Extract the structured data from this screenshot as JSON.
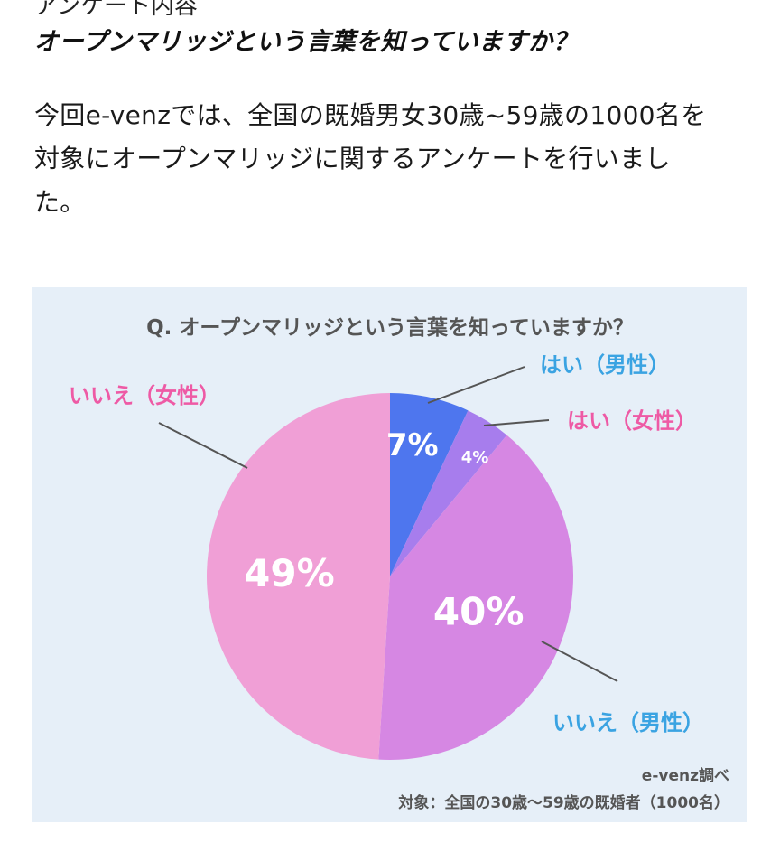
{
  "article": {
    "section_label": "アンケート内容",
    "heading": "オープンマリッジという言葉を知っていますか？",
    "body_lines": [
      "今回e-venzでは、全国の既婚男女30歳~59歳の1000名を",
      "対象にオープンマリッジに関するアンケートを行いまし",
      "た。"
    ]
  },
  "colors": {
    "card_background": "#e6eff8",
    "yes_male": "#4e76ee",
    "yes_female": "#a77ded",
    "no_male": "#d687e3",
    "no_female": "#f09fd6",
    "blue_label": "#3aa3e2",
    "pink_label": "#ee5aa5"
  },
  "chart_data": {
    "type": "pie",
    "title": "Q. オープンマリッジという言葉を知っていますか？",
    "slices": [
      {
        "label": "はい（男性）",
        "value": 7,
        "value_label": "7%",
        "color": "#4e76ee",
        "label_color": "#3aa3e2"
      },
      {
        "label": "はい（女性）",
        "value": 4,
        "value_label": "4%",
        "color": "#a77ded",
        "label_color": "#ee5aa5"
      },
      {
        "label": "いいえ（男性）",
        "value": 40,
        "value_label": "40%",
        "color": "#d687e3",
        "label_color": "#3aa3e2"
      },
      {
        "label": "いいえ（女性）",
        "value": 49,
        "value_label": "49%",
        "color": "#f09fd6",
        "label_color": "#ee5aa5"
      }
    ],
    "start_angle_deg": 0,
    "direction": "clockwise",
    "footnotes": [
      "e-venz調べ",
      "対象：全国の30歳〜59歳の既婚者（1000名）"
    ]
  }
}
